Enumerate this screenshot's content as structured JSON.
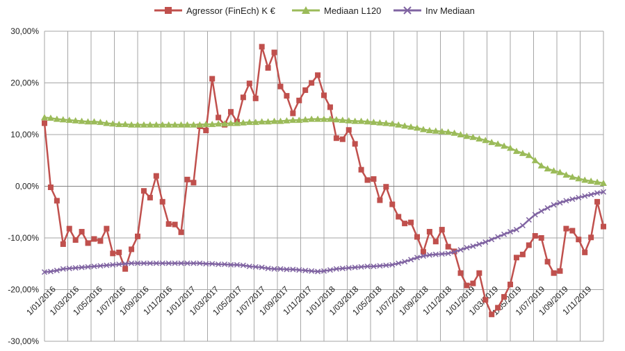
{
  "chart_data": {
    "type": "line",
    "title": "",
    "xlabel": "",
    "ylabel": "",
    "ylim": [
      -30,
      30
    ],
    "ytick_values": [
      -30,
      -20,
      -10,
      0,
      10,
      20,
      30
    ],
    "ytick_labels": [
      "-30,00%",
      "-20,00%",
      "-10,00%",
      "0,00%",
      "10,00%",
      "20,00%",
      "30,00%"
    ],
    "xtick_labels": [
      "1/01/2016",
      "1/03/2016",
      "1/05/2016",
      "1/07/2016",
      "1/09/2016",
      "1/11/2016",
      "1/01/2017",
      "1/03/2017",
      "1/05/2017",
      "1/07/2017",
      "1/09/2017",
      "1/11/2017",
      "1/01/2018",
      "1/03/2018",
      "1/05/2018",
      "1/07/2018",
      "1/09/2018",
      "1/11/2018",
      "1/01/2019",
      "1/03/2019",
      "1/05/2019",
      "1/07/2019",
      "1/09/2019",
      "1/11/2019"
    ],
    "legend_position": "top-center",
    "grid": true,
    "series": [
      {
        "name": "Agressor  (FinEch) K €",
        "color": "#c0504d",
        "marker": "square",
        "values": [
          12.2,
          -0.2,
          -2.8,
          -11.2,
          -8.2,
          -10.4,
          -8.8,
          -11.0,
          -10.2,
          -10.6,
          -8.2,
          -13.0,
          -12.8,
          -16.0,
          -12.2,
          -9.7,
          -0.9,
          -2.2,
          2.0,
          -3.0,
          -7.3,
          -7.4,
          -8.9,
          1.3,
          0.7,
          11.6,
          10.8,
          20.8,
          13.3,
          11.9,
          14.4,
          12.5,
          17.2,
          19.9,
          17.0,
          27.0,
          22.9,
          25.9,
          19.3,
          17.5,
          14.1,
          16.6,
          18.6,
          20.0,
          21.5,
          17.6,
          15.3,
          9.3,
          9.1,
          10.9,
          8.2,
          3.2,
          1.2,
          1.4,
          -2.7,
          -0.1,
          -3.5,
          -5.9,
          -7.2,
          -7.0,
          -9.8,
          -12.7,
          -8.8,
          -10.7,
          -8.4,
          -11.7,
          -12.6,
          -16.8,
          -19.2,
          -18.8,
          -16.8,
          -22.0,
          -24.8,
          -23.5,
          -21.4,
          -19.0,
          -13.8,
          -13.2,
          -11.4,
          -9.6,
          -10.0,
          -14.6,
          -16.8,
          -16.4,
          -8.2,
          -8.6,
          -10.3,
          -12.8,
          -9.9,
          -3.0,
          -7.8
        ]
      },
      {
        "name": "Mediaan L120",
        "color": "#9bbb59",
        "marker": "triangle",
        "values": [
          13.3,
          13.2,
          13.0,
          12.9,
          12.8,
          12.7,
          12.6,
          12.5,
          12.5,
          12.4,
          12.2,
          12.1,
          12.0,
          12.0,
          11.9,
          11.9,
          11.9,
          11.9,
          11.9,
          11.9,
          11.9,
          11.9,
          11.9,
          11.9,
          11.9,
          11.9,
          12.0,
          12.0,
          12.1,
          12.1,
          12.2,
          12.2,
          12.3,
          12.4,
          12.4,
          12.5,
          12.5,
          12.6,
          12.6,
          12.7,
          12.8,
          12.8,
          12.9,
          13.0,
          13.0,
          13.0,
          13.0,
          12.9,
          12.8,
          12.7,
          12.6,
          12.6,
          12.5,
          12.4,
          12.3,
          12.2,
          12.1,
          11.9,
          11.7,
          11.5,
          11.3,
          11.0,
          10.8,
          10.7,
          10.6,
          10.5,
          10.3,
          10.0,
          9.7,
          9.5,
          9.2,
          8.9,
          8.5,
          8.2,
          7.8,
          7.4,
          6.8,
          6.4,
          6.0,
          5.0,
          4.0,
          3.4,
          3.0,
          2.7,
          2.2,
          1.8,
          1.5,
          1.2,
          1.0,
          0.8,
          0.6
        ]
      },
      {
        "name": "Inv Mediaan",
        "color": "#8064a2",
        "marker": "x",
        "values": [
          -16.6,
          -16.5,
          -16.3,
          -16.0,
          -15.9,
          -15.8,
          -15.7,
          -15.6,
          -15.5,
          -15.4,
          -15.3,
          -15.2,
          -15.1,
          -15.0,
          -14.9,
          -14.9,
          -14.9,
          -14.9,
          -14.9,
          -14.9,
          -14.9,
          -14.9,
          -14.9,
          -14.9,
          -14.9,
          -14.9,
          -15.0,
          -15.0,
          -15.1,
          -15.1,
          -15.2,
          -15.2,
          -15.3,
          -15.5,
          -15.6,
          -15.7,
          -15.9,
          -16.0,
          -16.0,
          -16.1,
          -16.1,
          -16.2,
          -16.3,
          -16.4,
          -16.5,
          -16.4,
          -16.2,
          -16.0,
          -15.9,
          -15.8,
          -15.7,
          -15.6,
          -15.5,
          -15.5,
          -15.4,
          -15.3,
          -15.2,
          -14.9,
          -14.6,
          -14.2,
          -13.8,
          -13.5,
          -13.3,
          -13.2,
          -13.1,
          -13.0,
          -12.7,
          -12.3,
          -11.9,
          -11.6,
          -11.2,
          -10.8,
          -10.3,
          -9.8,
          -9.3,
          -8.8,
          -8.4,
          -7.6,
          -6.5,
          -5.5,
          -4.8,
          -4.2,
          -3.6,
          -3.2,
          -2.8,
          -2.5,
          -2.2,
          -1.9,
          -1.6,
          -1.3,
          -1.1
        ]
      }
    ]
  }
}
